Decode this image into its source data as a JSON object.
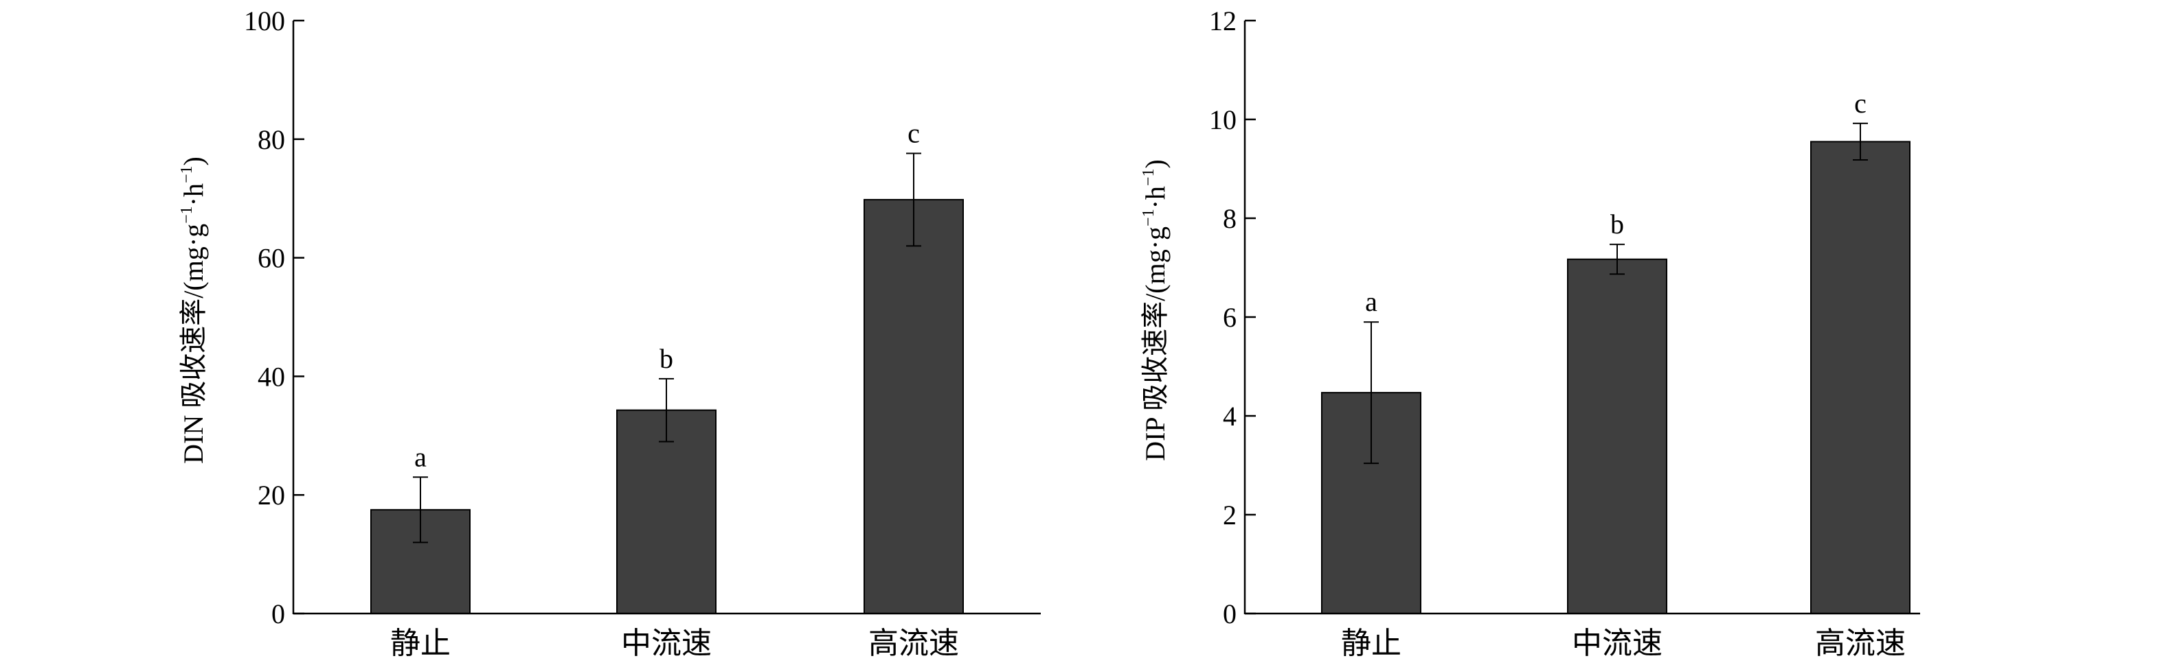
{
  "chart_data": [
    {
      "type": "bar",
      "categories": [
        "静止",
        "中流速",
        "高流速"
      ],
      "values": [
        17.5,
        34.3,
        69.8
      ],
      "errors": [
        5.5,
        5.3,
        7.8
      ],
      "significance": [
        "a",
        "b",
        "c"
      ],
      "ylim": [
        0,
        100
      ],
      "yticks": [
        "0",
        "20",
        "40",
        "60",
        "80",
        "100"
      ],
      "ylabel": {
        "main": "DIN 吸收速率/(mg·g",
        "sup1": "−1",
        "mid": "·h",
        "sup2": "−1",
        "end": ")"
      },
      "xlabel": "",
      "bar_color": "#3f3f3f",
      "grid": false
    },
    {
      "type": "bar",
      "categories": [
        "静止",
        "中流速",
        "高流速"
      ],
      "values": [
        4.47,
        7.17,
        9.55
      ],
      "errors": [
        1.43,
        0.3,
        0.37
      ],
      "significance": [
        "a",
        "b",
        "c"
      ],
      "ylim": [
        0,
        12
      ],
      "yticks": [
        "0",
        "2",
        "4",
        "6",
        "8",
        "10",
        "12"
      ],
      "ylabel": {
        "main": "DIP 吸收速率/(mg·g",
        "sup1": "−1",
        "mid": "·h",
        "sup2": "−1",
        "end": ")"
      },
      "xlabel": "",
      "bar_color": "#3f3f3f",
      "grid": false
    }
  ]
}
